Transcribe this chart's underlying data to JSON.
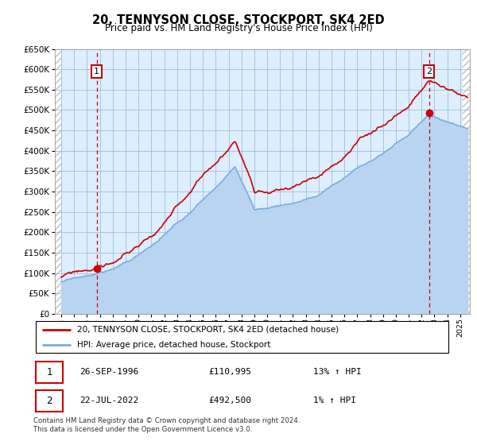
{
  "title": "20, TENNYSON CLOSE, STOCKPORT, SK4 2ED",
  "subtitle": "Price paid vs. HM Land Registry's House Price Index (HPI)",
  "ylim": [
    0,
    650000
  ],
  "yticks": [
    0,
    50000,
    100000,
    150000,
    200000,
    250000,
    300000,
    350000,
    400000,
    450000,
    500000,
    550000,
    600000,
    650000
  ],
  "legend_entry1": "20, TENNYSON CLOSE, STOCKPORT, SK4 2ED (detached house)",
  "legend_entry2": "HPI: Average price, detached house, Stockport",
  "point1_date": "26-SEP-1996",
  "point1_price": 110995,
  "point1_pct": "13% ↑ HPI",
  "point2_date": "22-JUL-2022",
  "point2_price": 492500,
  "point2_pct": "1% ↑ HPI",
  "footer": "Contains HM Land Registry data © Crown copyright and database right 2024.\nThis data is licensed under the Open Government Licence v3.0.",
  "hpi_color": "#7aaddc",
  "hpi_fill_color": "#b8d4f0",
  "price_color": "#cc0000",
  "bg_color": "#ddeeff",
  "grid_color": "#a0bcda",
  "vline_color": "#cc0000",
  "box_color": "#cc0000",
  "xlim_left": 1993.5,
  "xlim_right": 2025.75,
  "point1_year": 1996.75,
  "point2_year": 2022.54
}
